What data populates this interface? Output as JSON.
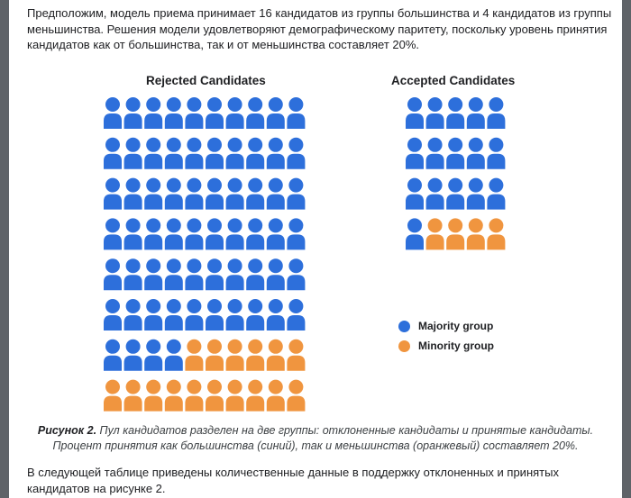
{
  "intro_text": "Предположим, модель приема принимает 16 кандидатов из группы большинства и 4 кандидатов из группы меньшинства. Решения модели удовлетворяют демографическому паритету, поскольку уровень принятия кандидатов как от большинства, так и от меньшинства составляет 20%.",
  "figure": {
    "rejected_title": "Rejected Candidates",
    "accepted_title": "Accepted Candidates",
    "legend": {
      "majority": "Majority group",
      "minority": "Minority group"
    },
    "colors": {
      "majority": "#2d6fdb",
      "minority": "#f0953f"
    },
    "icon": "person-icon",
    "rejected": {
      "majority_count": 64,
      "minority_count": 16,
      "columns": 10
    },
    "accepted": {
      "majority_count": 16,
      "minority_count": 4,
      "columns": 5
    }
  },
  "caption": {
    "label": "Рисунок 2.",
    "text": " Пул кандидатов разделен на две группы: отклоненные кандидаты и принятые кандидаты. Процент принятия как большинства (синий), так и меньшинства (оранжевый) составляет 20%."
  },
  "after_text": "В следующей таблице приведены количественные данные в поддержку отклоненных и принятых кандидатов на рисунке 2."
}
